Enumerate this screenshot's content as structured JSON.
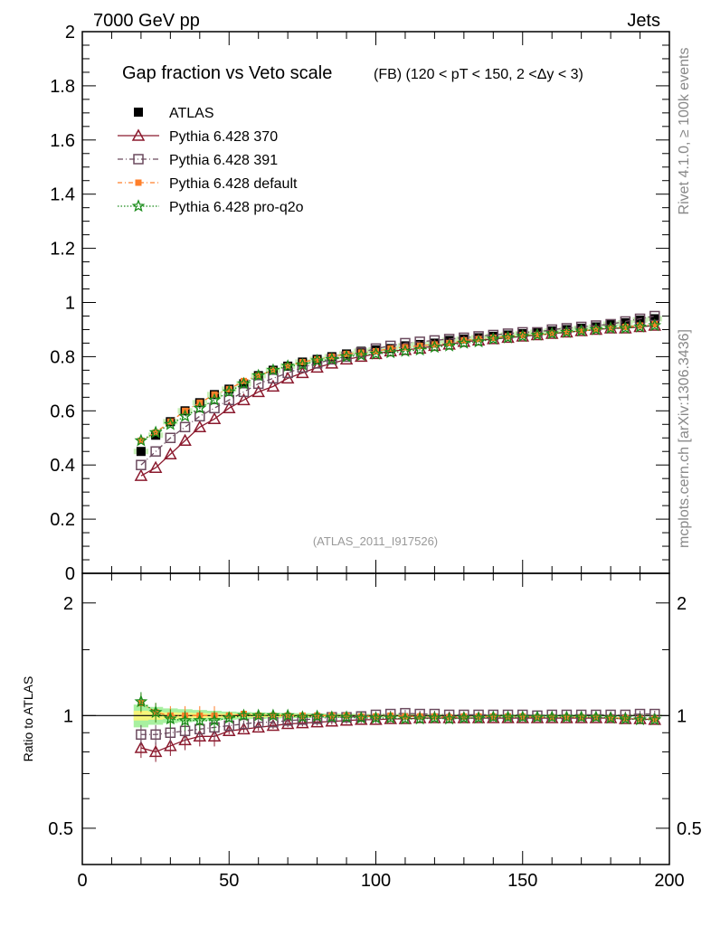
{
  "header": {
    "left": "7000 GeV pp",
    "right": "Jets",
    "rivet": "Rivet 4.1.0, ≥ 100k events",
    "mcplots": "mcplots.cern.ch [arXiv:1306.3436]"
  },
  "chart_data": [
    {
      "panel": "main",
      "type": "line",
      "title_main": "Gap fraction vs Veto scale",
      "title_sub": "(FB) (120 < pT < 150, 2 <Δy < 3)",
      "analysis_label": "(ATLAS_2011_I917526)",
      "xlim": [
        0,
        200
      ],
      "ylim": [
        0,
        2.0
      ],
      "x_ticks": [
        0,
        50,
        100,
        150,
        200
      ],
      "y_ticks": [
        0,
        0.2,
        0.4,
        0.6,
        0.8,
        1,
        1.2,
        1.4,
        1.6,
        1.8,
        2
      ],
      "y_tick_labels": [
        "0",
        "0.2",
        "0.4",
        "0.6",
        "0.8",
        "1",
        "1.2",
        "1.4",
        "1.6",
        "1.8",
        "2"
      ],
      "x": [
        20,
        25,
        30,
        35,
        40,
        45,
        50,
        55,
        60,
        65,
        70,
        75,
        80,
        85,
        90,
        95,
        100,
        105,
        110,
        115,
        120,
        125,
        130,
        135,
        140,
        145,
        150,
        155,
        160,
        165,
        170,
        175,
        180,
        185,
        190,
        195
      ],
      "series": [
        {
          "name": "ATLAS",
          "color": "#000000",
          "marker": "filled-square",
          "values": [
            0.45,
            0.51,
            0.56,
            0.6,
            0.63,
            0.66,
            0.68,
            0.7,
            0.73,
            0.75,
            0.765,
            0.78,
            0.79,
            0.8,
            0.81,
            0.82,
            0.825,
            0.83,
            0.84,
            0.845,
            0.85,
            0.86,
            0.865,
            0.87,
            0.875,
            0.88,
            0.885,
            0.89,
            0.895,
            0.9,
            0.905,
            0.91,
            0.92,
            0.925,
            0.935,
            0.94
          ]
        },
        {
          "name": "Pythia 6.428 370",
          "color": "#8b1a2e",
          "marker": "open-triangle",
          "values": [
            0.36,
            0.39,
            0.44,
            0.49,
            0.54,
            0.57,
            0.61,
            0.64,
            0.67,
            0.69,
            0.72,
            0.74,
            0.76,
            0.775,
            0.79,
            0.8,
            0.81,
            0.82,
            0.825,
            0.83,
            0.84,
            0.845,
            0.855,
            0.86,
            0.865,
            0.87,
            0.875,
            0.88,
            0.885,
            0.89,
            0.895,
            0.9,
            0.905,
            0.905,
            0.91,
            0.915
          ]
        },
        {
          "name": "Pythia 6.428 391",
          "color": "#6b4a5e",
          "marker": "open-square",
          "values": [
            0.4,
            0.45,
            0.5,
            0.54,
            0.58,
            0.61,
            0.64,
            0.67,
            0.7,
            0.72,
            0.74,
            0.76,
            0.775,
            0.79,
            0.8,
            0.815,
            0.83,
            0.84,
            0.85,
            0.855,
            0.86,
            0.865,
            0.87,
            0.875,
            0.88,
            0.885,
            0.89,
            0.89,
            0.9,
            0.905,
            0.91,
            0.915,
            0.92,
            0.93,
            0.94,
            0.95
          ]
        },
        {
          "name": "Pythia 6.428 default",
          "color": "#ff7f2a",
          "marker": "filled-square-small",
          "values": [
            0.49,
            0.52,
            0.56,
            0.6,
            0.63,
            0.66,
            0.68,
            0.71,
            0.73,
            0.75,
            0.765,
            0.78,
            0.79,
            0.8,
            0.81,
            0.815,
            0.82,
            0.83,
            0.835,
            0.84,
            0.845,
            0.85,
            0.86,
            0.865,
            0.87,
            0.875,
            0.88,
            0.88,
            0.885,
            0.89,
            0.895,
            0.9,
            0.905,
            0.91,
            0.915,
            0.92
          ]
        },
        {
          "name": "Pythia 6.428 pro-q2o",
          "color": "#1a8c1a",
          "marker": "open-star",
          "values": [
            0.49,
            0.52,
            0.55,
            0.58,
            0.61,
            0.64,
            0.67,
            0.7,
            0.73,
            0.75,
            0.765,
            0.77,
            0.785,
            0.79,
            0.8,
            0.805,
            0.81,
            0.815,
            0.82,
            0.825,
            0.835,
            0.84,
            0.85,
            0.855,
            0.865,
            0.87,
            0.875,
            0.88,
            0.885,
            0.89,
            0.895,
            0.9,
            0.905,
            0.905,
            0.91,
            0.915
          ]
        }
      ]
    },
    {
      "panel": "ratio",
      "type": "line",
      "ylabel": "Ratio to ATLAS",
      "scale": "log",
      "ylim": [
        0.4,
        2.4
      ],
      "y_ticks": [
        0.5,
        1,
        2
      ],
      "y_tick_labels": [
        "0.5",
        "1",
        "2"
      ],
      "x_ticks": [
        0,
        50,
        100,
        150,
        200
      ],
      "x_tick_labels": [
        "0",
        "50",
        "100",
        "150",
        "200"
      ],
      "x": [
        20,
        25,
        30,
        35,
        40,
        45,
        50,
        55,
        60,
        65,
        70,
        75,
        80,
        85,
        90,
        95,
        100,
        105,
        110,
        115,
        120,
        125,
        130,
        135,
        140,
        145,
        150,
        155,
        160,
        165,
        170,
        175,
        180,
        185,
        190,
        195
      ],
      "band_inner": [
        0.97,
        0.975,
        0.98,
        0.982,
        0.985,
        0.987,
        0.988,
        0.99,
        0.99,
        0.991,
        0.992,
        0.992,
        0.993,
        0.993,
        0.994,
        0.994,
        0.994,
        0.995,
        0.995,
        0.995,
        0.995,
        0.996,
        0.996,
        0.996,
        0.996,
        0.996,
        0.997,
        0.997,
        0.997,
        0.997,
        0.997,
        0.997,
        0.997,
        0.997,
        0.997,
        0.997
      ],
      "band_outer": [
        0.93,
        0.945,
        0.955,
        0.96,
        0.965,
        0.97,
        0.975,
        0.978,
        0.98,
        0.982,
        0.984,
        0.985,
        0.986,
        0.987,
        0.988,
        0.989,
        0.99,
        0.99,
        0.99,
        0.991,
        0.991,
        0.992,
        0.992,
        0.992,
        0.993,
        0.993,
        0.993,
        0.993,
        0.994,
        0.994,
        0.994,
        0.994,
        0.994,
        0.994,
        0.994,
        0.994
      ],
      "series": [
        {
          "name": "Pythia 6.428 370",
          "color": "#8b1a2e",
          "marker": "open-triangle",
          "values": [
            0.82,
            0.8,
            0.83,
            0.86,
            0.88,
            0.88,
            0.91,
            0.92,
            0.93,
            0.94,
            0.95,
            0.955,
            0.96,
            0.965,
            0.97,
            0.975,
            0.975,
            0.98,
            0.98,
            0.985,
            0.985,
            0.985,
            0.985,
            0.985,
            0.985,
            0.985,
            0.985,
            0.985,
            0.985,
            0.985,
            0.985,
            0.985,
            0.985,
            0.98,
            0.98,
            0.975
          ]
        },
        {
          "name": "Pythia 6.428 391",
          "color": "#6b4a5e",
          "marker": "open-square",
          "values": [
            0.89,
            0.89,
            0.9,
            0.91,
            0.92,
            0.93,
            0.94,
            0.95,
            0.96,
            0.96,
            0.97,
            0.975,
            0.98,
            0.99,
            0.99,
            0.995,
            1.005,
            1.01,
            1.015,
            1.01,
            1.01,
            1.005,
            1.005,
            1.005,
            1.005,
            1.005,
            1.005,
            1.0,
            1.005,
            1.005,
            1.005,
            1.005,
            1.005,
            1.005,
            1.01,
            1.01
          ]
        },
        {
          "name": "Pythia 6.428 default",
          "color": "#ff7f2a",
          "marker": "filled-square-small",
          "values": [
            1.08,
            1.02,
            1.0,
            1.0,
            1.0,
            1.0,
            1.0,
            1.01,
            1.0,
            1.0,
            1.0,
            1.0,
            1.0,
            1.0,
            1.0,
            0.995,
            0.995,
            1.0,
            0.995,
            0.995,
            0.995,
            0.99,
            0.995,
            0.995,
            0.995,
            0.995,
            0.995,
            0.99,
            0.99,
            0.99,
            0.99,
            0.99,
            0.985,
            0.985,
            0.98,
            0.98
          ]
        },
        {
          "name": "Pythia 6.428 pro-q2o",
          "color": "#1a8c1a",
          "marker": "open-star",
          "values": [
            1.09,
            1.02,
            0.98,
            0.97,
            0.97,
            0.97,
            0.985,
            1.0,
            1.0,
            1.0,
            1.0,
            0.99,
            0.995,
            0.99,
            0.99,
            0.985,
            0.985,
            0.985,
            0.98,
            0.98,
            0.985,
            0.98,
            0.985,
            0.985,
            0.99,
            0.99,
            0.99,
            0.99,
            0.99,
            0.99,
            0.99,
            0.99,
            0.985,
            0.98,
            0.975,
            0.975
          ]
        }
      ]
    }
  ]
}
